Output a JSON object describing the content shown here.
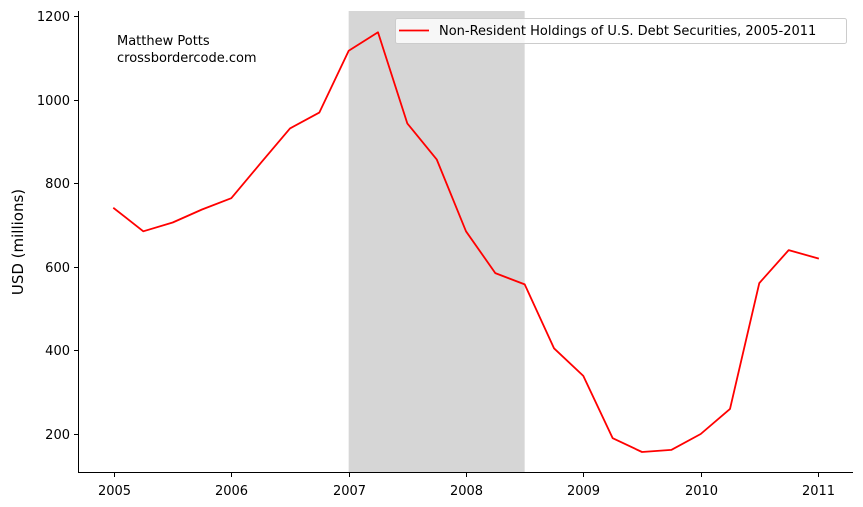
{
  "chart_data": {
    "type": "line",
    "title": "",
    "xlabel": "",
    "ylabel": "USD (millions)",
    "xlim": [
      2004.7,
      2011.3
    ],
    "ylim": [
      109,
      1211
    ],
    "x_ticks": [
      2005,
      2006,
      2007,
      2008,
      2009,
      2010,
      2011
    ],
    "x_tick_labels": [
      "2005",
      "2006",
      "2007",
      "2008",
      "2009",
      "2010",
      "2011"
    ],
    "y_ticks": [
      200,
      400,
      600,
      800,
      1000,
      1200
    ],
    "y_tick_labels": [
      "200",
      "400",
      "600",
      "800",
      "1000",
      "1200"
    ],
    "grid": false,
    "legend_position": "upper right",
    "series": [
      {
        "name": "Non-Resident Holdings of U.S. Debt Securities, 2005-2011",
        "color": "#ff0000",
        "x": [
          2005.0,
          2005.25,
          2005.5,
          2005.75,
          2006.0,
          2006.25,
          2006.5,
          2006.75,
          2007.0,
          2007.25,
          2007.5,
          2007.75,
          2008.0,
          2008.25,
          2008.5,
          2008.75,
          2009.0,
          2009.25,
          2009.5,
          2009.75,
          2010.0,
          2010.25,
          2010.5,
          2010.75,
          2011.0
        ],
        "values": [
          740,
          685,
          706,
          737,
          764,
          848,
          931,
          969,
          1117,
          1161,
          943,
          857,
          685,
          585,
          558,
          405,
          339,
          190,
          157,
          162,
          200,
          260,
          561,
          640,
          620
        ]
      }
    ],
    "shaded_regions": [
      {
        "x_start": 2007.0,
        "x_end": 2008.5,
        "color": "#d6d6d6",
        "label": ""
      }
    ],
    "annotations": [
      {
        "text": "Matthew Potts",
        "x": 2005.03,
        "y": 1135
      },
      {
        "text": "crossbordercode.com",
        "x": 2005.03,
        "y": 1095
      }
    ]
  },
  "annotation": {
    "author": "Matthew Potts",
    "site": "crossbordercode.com"
  },
  "legend": {
    "label": "Non-Resident Holdings of U.S. Debt Securities, 2005-2011"
  },
  "axes": {
    "ylabel": "USD (millions)"
  }
}
